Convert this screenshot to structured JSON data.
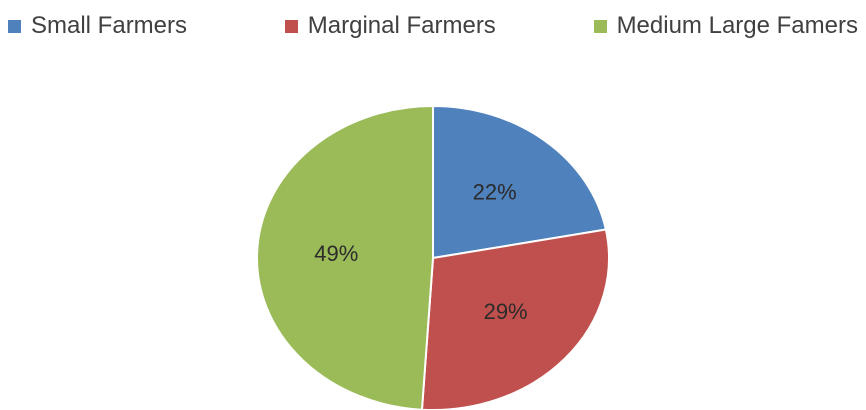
{
  "chart_data": {
    "type": "pie",
    "title": "",
    "legend_position": "top",
    "slices": [
      {
        "label": "Small Farmers",
        "value": 22,
        "value_label": "22%",
        "color": "#4f81bd"
      },
      {
        "label": "Marginal Farmers",
        "value": 29,
        "value_label": "29%",
        "color": "#c0504d"
      },
      {
        "label": "Medium Large Famers",
        "value": 49,
        "value_label": "49%",
        "color": "#9bbb59"
      }
    ]
  }
}
